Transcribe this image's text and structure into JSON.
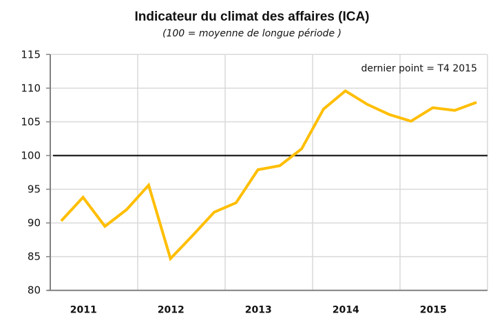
{
  "chart_data": {
    "type": "line",
    "title": "Indicateur du climat des affaires (ICA)",
    "subtitle": "(100 = moyenne de longue période )",
    "annotation": "dernier point = T4 2015",
    "x_categories": [
      "2011",
      "2012",
      "2013",
      "2014",
      "2015"
    ],
    "x": [
      "2011T1",
      "2011T2",
      "2011T3",
      "2011T4",
      "2012T1",
      "2012T2",
      "2012T3",
      "2012T4",
      "2013T1",
      "2013T2",
      "2013T3",
      "2013T4",
      "2014T1",
      "2014T2",
      "2014T3",
      "2014T4",
      "2015T1",
      "2015T2",
      "2015T3",
      "2015T4"
    ],
    "series": [
      {
        "values": [
          90.3,
          93.8,
          89.5,
          92.0,
          95.6,
          84.7,
          88.1,
          91.6,
          93.0,
          97.9,
          98.5,
          101.0,
          106.9,
          109.6,
          107.6,
          106.1,
          105.1,
          107.1,
          106.7,
          107.9
        ],
        "color": "#FFBE00"
      }
    ],
    "reference_line": {
      "value": 100,
      "color": "#000000"
    },
    "yticks": [
      80,
      85,
      90,
      95,
      100,
      105,
      110,
      115
    ],
    "ylim": [
      80,
      115
    ],
    "grid": true,
    "grid_color": "#D9D9D9"
  }
}
